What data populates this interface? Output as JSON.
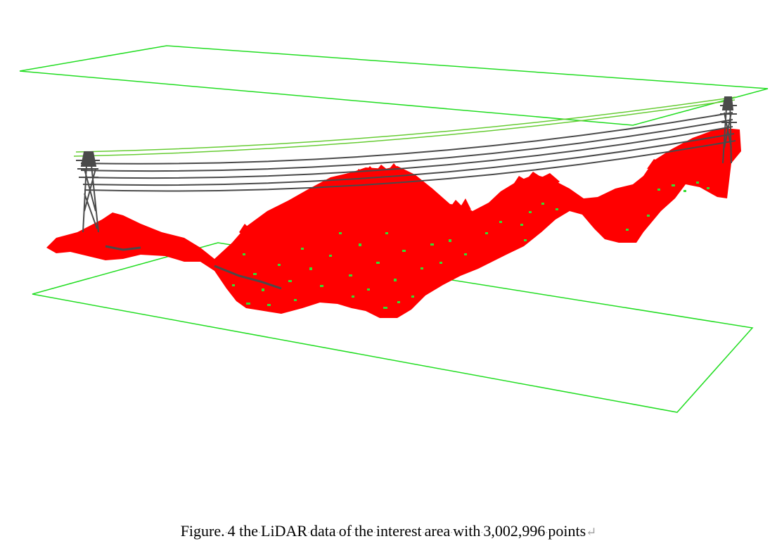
{
  "caption": {
    "label": "Figure.",
    "number": "4",
    "words": [
      "the",
      "LiDAR",
      "data",
      "of",
      "the",
      "interest",
      "area",
      "with",
      "3,002,996",
      "points"
    ]
  },
  "colors": {
    "bounding_box": "#22dd22",
    "vegetation": "#ff0000",
    "ground": "#33dd33",
    "tower_and_wires": "#4a4a4a",
    "conductor_green": "#66cc33"
  },
  "icons": {
    "paragraph_mark": "return-arrow-icon"
  }
}
